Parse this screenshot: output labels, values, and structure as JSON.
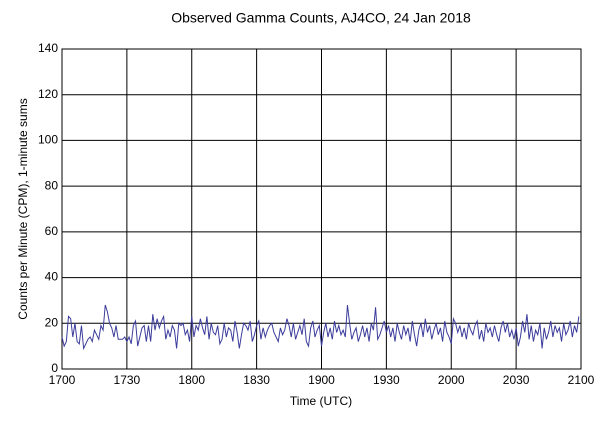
{
  "chart_data": {
    "type": "line",
    "title": "Observed Gamma Counts, AJ4CO, 24 Jan 2018",
    "x_label": "Time (UTC)",
    "y_label": "Counts per Minute (CPM), 1-minute sums",
    "xlim": [
      "1700",
      "2100"
    ],
    "xticks": [
      "1700",
      "1730",
      "1800",
      "1830",
      "1900",
      "1930",
      "2000",
      "2030",
      "2100"
    ],
    "ylim": [
      0,
      140
    ],
    "yticks": [
      0,
      20,
      40,
      60,
      80,
      100,
      120,
      140
    ],
    "grid": true,
    "x": [
      "1700",
      "1701",
      "1702",
      "1703",
      "1704",
      "1705",
      "1706",
      "1707",
      "1708",
      "1709",
      "1710",
      "1711",
      "1712",
      "1713",
      "1714",
      "1715",
      "1716",
      "1717",
      "1718",
      "1719",
      "1720",
      "1721",
      "1722",
      "1723",
      "1724",
      "1725",
      "1726",
      "1727",
      "1728",
      "1729",
      "1730",
      "1731",
      "1732",
      "1733",
      "1734",
      "1735",
      "1736",
      "1737",
      "1738",
      "1739",
      "1740",
      "1741",
      "1742",
      "1743",
      "1744",
      "1745",
      "1746",
      "1747",
      "1748",
      "1749",
      "1750",
      "1751",
      "1752",
      "1753",
      "1754",
      "1755",
      "1756",
      "1757",
      "1758",
      "1759",
      "1800",
      "1801",
      "1802",
      "1803",
      "1804",
      "1805",
      "1806",
      "1807",
      "1808",
      "1809",
      "1810",
      "1811",
      "1812",
      "1813",
      "1814",
      "1815",
      "1816",
      "1817",
      "1818",
      "1819",
      "1820",
      "1821",
      "1822",
      "1823",
      "1824",
      "1825",
      "1826",
      "1827",
      "1828",
      "1829",
      "1830",
      "1831",
      "1832",
      "1833",
      "1834",
      "1835",
      "1836",
      "1837",
      "1838",
      "1839",
      "1840",
      "1841",
      "1842",
      "1843",
      "1844",
      "1845",
      "1846",
      "1847",
      "1848",
      "1849",
      "1850",
      "1851",
      "1852",
      "1853",
      "1854",
      "1855",
      "1856",
      "1857",
      "1858",
      "1859",
      "1900",
      "1901",
      "1902",
      "1903",
      "1904",
      "1905",
      "1906",
      "1907",
      "1908",
      "1909",
      "1910",
      "1911",
      "1912",
      "1913",
      "1914",
      "1915",
      "1916",
      "1917",
      "1918",
      "1919",
      "1920",
      "1921",
      "1922",
      "1923",
      "1924",
      "1925",
      "1926",
      "1927",
      "1928",
      "1929",
      "1930",
      "1931",
      "1932",
      "1933",
      "1934",
      "1935",
      "1936",
      "1937",
      "1938",
      "1939",
      "1940",
      "1941",
      "1942",
      "1943",
      "1944",
      "1945",
      "1946",
      "1947",
      "1948",
      "1949",
      "1950",
      "1951",
      "1952",
      "1953",
      "1954",
      "1955",
      "1956",
      "1957",
      "1958",
      "1959",
      "2000",
      "2001",
      "2002",
      "2003",
      "2004",
      "2005",
      "2006",
      "2007",
      "2008",
      "2009",
      "2010",
      "2011",
      "2012",
      "2013",
      "2014",
      "2015",
      "2016",
      "2017",
      "2018",
      "2019",
      "2020",
      "2021",
      "2022",
      "2023",
      "2024",
      "2025",
      "2026",
      "2027",
      "2028",
      "2029",
      "2030",
      "2031",
      "2032",
      "2033",
      "2034",
      "2035",
      "2036",
      "2037",
      "2038",
      "2039",
      "2040",
      "2041",
      "2042",
      "2043",
      "2044",
      "2045",
      "2046",
      "2047",
      "2048",
      "2049",
      "2050",
      "2051",
      "2052",
      "2053",
      "2054",
      "2055",
      "2056",
      "2057",
      "2058",
      "2059"
    ],
    "series": [
      {
        "color": "#3c3c9c",
        "values": [
          14,
          10,
          12,
          23,
          22,
          14,
          20,
          12,
          11,
          19,
          9,
          11,
          13,
          14,
          12,
          17,
          15,
          13,
          19,
          17,
          28,
          25,
          20,
          18,
          14,
          19,
          13,
          13,
          13,
          14,
          12,
          14,
          11,
          19,
          21,
          10,
          14,
          18,
          19,
          12,
          19,
          12,
          24,
          17,
          22,
          18,
          21,
          23,
          13,
          17,
          14,
          19,
          17,
          9,
          20,
          19,
          20,
          15,
          17,
          12,
          23,
          14,
          19,
          17,
          22,
          18,
          15,
          23,
          13,
          20,
          16,
          15,
          19,
          11,
          13,
          20,
          14,
          18,
          17,
          12,
          21,
          16,
          9,
          15,
          20,
          19,
          17,
          21,
          12,
          15,
          19,
          21,
          13,
          18,
          14,
          17,
          19,
          20,
          16,
          14,
          12,
          18,
          15,
          17,
          22,
          19,
          14,
          20,
          13,
          16,
          19,
          15,
          22,
          12,
          10,
          18,
          21,
          14,
          17,
          19,
          10,
          16,
          20,
          14,
          18,
          13,
          21,
          16,
          19,
          15,
          17,
          14,
          28,
          20,
          13,
          16,
          18,
          12,
          15,
          19,
          14,
          18,
          12,
          20,
          17,
          27,
          13,
          15,
          18,
          21,
          16,
          19,
          14,
          18,
          12,
          20,
          16,
          13,
          19,
          15,
          18,
          12,
          21,
          15,
          10,
          17,
          20,
          14,
          22,
          16,
          19,
          13,
          17,
          20,
          15,
          18,
          12,
          21,
          16,
          14,
          11,
          22,
          20,
          16,
          19,
          14,
          18,
          13,
          20,
          17,
          15,
          19,
          21,
          13,
          17,
          12,
          20,
          16,
          18,
          14,
          19,
          15,
          12,
          18,
          21,
          16,
          20,
          14,
          17,
          13,
          18,
          10,
          14,
          21,
          16,
          24,
          13,
          19,
          12,
          17,
          15,
          20,
          9,
          18,
          13,
          16,
          21,
          14,
          19,
          16,
          18,
          12,
          20,
          15,
          17,
          21,
          14,
          19,
          16,
          23
        ]
      }
    ]
  }
}
